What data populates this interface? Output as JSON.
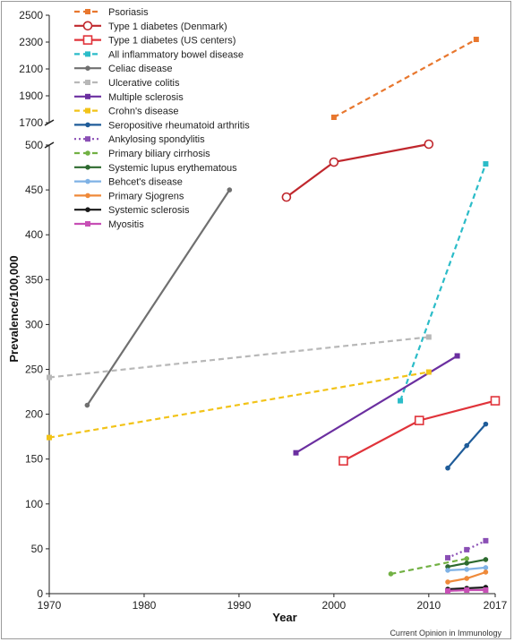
{
  "chart_data": {
    "type": "line",
    "title": "",
    "xlabel": "Year",
    "ylabel": "Prevalence/100,000",
    "credit": "Current Opinion in Immunology",
    "xlim": [
      1970,
      2017
    ],
    "xticks": [
      1970,
      1980,
      1990,
      2000,
      2010,
      2017
    ],
    "ylim_lower": [
      0,
      500
    ],
    "yticks_lower": [
      0,
      50,
      100,
      150,
      200,
      250,
      300,
      350,
      400,
      450,
      500
    ],
    "ylim_upper": [
      1700,
      2500
    ],
    "yticks_upper": [
      1700,
      1900,
      2100,
      2300,
      2500
    ],
    "axis_break": true,
    "legend_position": "top-left",
    "series": [
      {
        "name": "Psoriasis",
        "color": "#e8772e",
        "dash": true,
        "marker": "square-filled",
        "x": [
          2000,
          2015
        ],
        "y": [
          1740,
          2320
        ]
      },
      {
        "name": "Type 1 diabetes (Denmark)",
        "color": "#c0272d",
        "dash": false,
        "marker": "circle-open",
        "x": [
          1995,
          2000,
          2010
        ],
        "y": [
          442,
          481,
          501
        ]
      },
      {
        "name": "Type 1 diabetes (US centers)",
        "color": "#e0333a",
        "dash": false,
        "marker": "square-open",
        "x": [
          2001,
          2009,
          2017
        ],
        "y": [
          148,
          193,
          215
        ]
      },
      {
        "name": "All inflammatory bowel disease",
        "color": "#2bbcc8",
        "dash": true,
        "marker": "square-filled",
        "x": [
          2007,
          2016
        ],
        "y": [
          215,
          479
        ]
      },
      {
        "name": "Celiac disease",
        "color": "#707070",
        "dash": false,
        "marker": "circle-filled",
        "x": [
          1974,
          1989
        ],
        "y": [
          210,
          450
        ]
      },
      {
        "name": "Ulcerative colitis",
        "color": "#b8b8b8",
        "dash": true,
        "marker": "square-filled",
        "x": [
          1970,
          2010
        ],
        "y": [
          241,
          286
        ]
      },
      {
        "name": "Multiple sclerosis",
        "color": "#6b2fa0",
        "dash": false,
        "marker": "square-filled",
        "x": [
          1996,
          2013
        ],
        "y": [
          157,
          265
        ]
      },
      {
        "name": "Crohn's disease",
        "color": "#f2c318",
        "dash": true,
        "marker": "square-filled",
        "x": [
          1970,
          2010
        ],
        "y": [
          174,
          247
        ]
      },
      {
        "name": "Seropositive rheumatoid arthritis",
        "color": "#1f5c99",
        "dash": false,
        "marker": "circle-filled",
        "x": [
          2012,
          2014,
          2016
        ],
        "y": [
          140,
          165,
          189
        ]
      },
      {
        "name": "Ankylosing spondylitis",
        "color": "#8a4fb5",
        "dash": true,
        "marker": "square-filled",
        "x": [
          2012,
          2014,
          2016
        ],
        "y": [
          40,
          49,
          59
        ]
      },
      {
        "name": "Primary biliary cirrhosis",
        "color": "#72b144",
        "dash": true,
        "marker": "circle-filled",
        "x": [
          2006,
          2014
        ],
        "y": [
          22,
          39
        ]
      },
      {
        "name": "Systemic lupus erythematous",
        "color": "#2d6a2f",
        "dash": false,
        "marker": "circle-filled",
        "x": [
          2012,
          2014,
          2016
        ],
        "y": [
          30,
          34,
          38
        ]
      },
      {
        "name": "Behcet's disease",
        "color": "#7fb2e5",
        "dash": false,
        "marker": "circle-filled",
        "x": [
          2012,
          2014,
          2016
        ],
        "y": [
          26,
          27,
          29
        ]
      },
      {
        "name": "Primary Sjogrens",
        "color": "#ef8a3a",
        "dash": false,
        "marker": "circle-filled",
        "x": [
          2012,
          2014,
          2016
        ],
        "y": [
          13,
          17,
          24
        ]
      },
      {
        "name": "Systemic sclerosis",
        "color": "#1a1a1a",
        "dash": false,
        "marker": "circle-filled",
        "x": [
          2012,
          2014,
          2016
        ],
        "y": [
          5,
          6,
          7
        ]
      },
      {
        "name": "Myositis",
        "color": "#c74fb5",
        "dash": false,
        "marker": "square-filled",
        "x": [
          2012,
          2014,
          2016
        ],
        "y": [
          3,
          4,
          4
        ]
      }
    ]
  }
}
